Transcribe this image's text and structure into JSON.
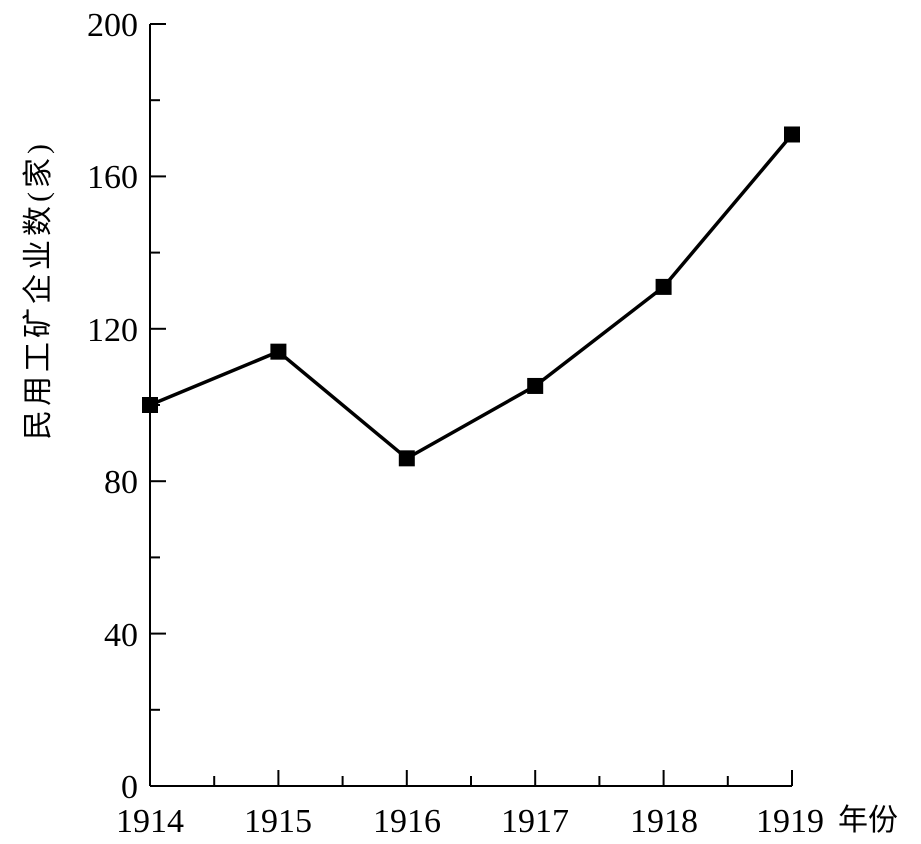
{
  "chart_data": {
    "type": "line",
    "title": "",
    "xlabel": "年份",
    "ylabel": "民用工矿企业数(家)",
    "x": [
      1914,
      1915,
      1916,
      1917,
      1918,
      1919
    ],
    "x_tick_labels": [
      "1914",
      "1915",
      "1916",
      "1917",
      "1918",
      "1919"
    ],
    "y_tick_labels": [
      "0",
      "40",
      "80",
      "120",
      "160",
      "200"
    ],
    "y_ticks": [
      0,
      40,
      80,
      120,
      160,
      200
    ],
    "ylim": [
      0,
      200
    ],
    "xlim": [
      1914,
      1919
    ],
    "grid": false,
    "series": [
      {
        "values": [
          100,
          114,
          86,
          105,
          131,
          171
        ],
        "color": "#000000",
        "marker": "square"
      }
    ]
  }
}
